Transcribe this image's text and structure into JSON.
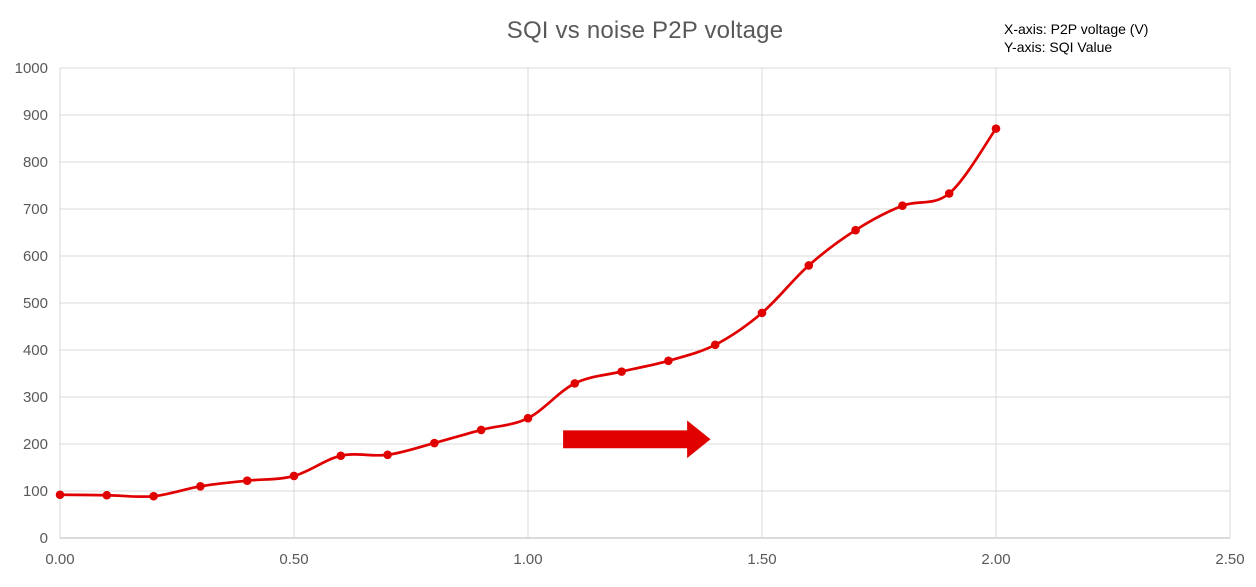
{
  "page": {
    "background": "#ffffff"
  },
  "chart_data": {
    "type": "line",
    "title": "SQI vs noise P2P voltage",
    "note_x": "X-axis: P2P voltage (V)",
    "note_y": "Y-axis: SQI Value",
    "xlabel": "P2P voltage (V)",
    "ylabel": "SQI Value",
    "x": [
      0.0,
      0.1,
      0.2,
      0.3,
      0.4,
      0.5,
      0.6,
      0.7,
      0.8,
      0.9,
      1.0,
      1.1,
      1.2,
      1.3,
      1.4,
      1.5,
      1.6,
      1.7,
      1.8,
      1.9,
      2.0
    ],
    "y": [
      92,
      91,
      89,
      110,
      122,
      132,
      175,
      177,
      202,
      230,
      255,
      329,
      354,
      377,
      411,
      479,
      580,
      655,
      707,
      733,
      871
    ],
    "xlim": [
      0,
      2.5
    ],
    "ylim": [
      0,
      1000
    ],
    "x_tick_values": [
      0,
      0.5,
      1.0,
      1.5,
      2.0,
      2.5
    ],
    "x_tick_labels": [
      "0.00",
      "0.50",
      "1.00",
      "1.50",
      "2.00",
      "2.50"
    ],
    "y_tick_values": [
      0,
      100,
      200,
      300,
      400,
      500,
      600,
      700,
      800,
      900,
      1000
    ],
    "y_tick_labels": [
      "0",
      "100",
      "200",
      "300",
      "400",
      "500",
      "600",
      "700",
      "800",
      "900",
      "1000"
    ],
    "grid": true,
    "smooth": true,
    "legend": "none",
    "marker": "circle",
    "colors": {
      "line": "#e00000",
      "marker": "#e00000",
      "arrow": "#e00000",
      "grid": "#d9d9d9",
      "axis": "#b7b7b7",
      "title": "#595959",
      "tick": "#595959",
      "note": "#000000",
      "background": "#ffffff"
    },
    "annotation_arrow": {
      "x_tail": 1.075,
      "x_head_base": 1.34,
      "x_tip": 1.39,
      "y_center": 210,
      "body_half_height": 19,
      "head_half_height": 40
    }
  }
}
